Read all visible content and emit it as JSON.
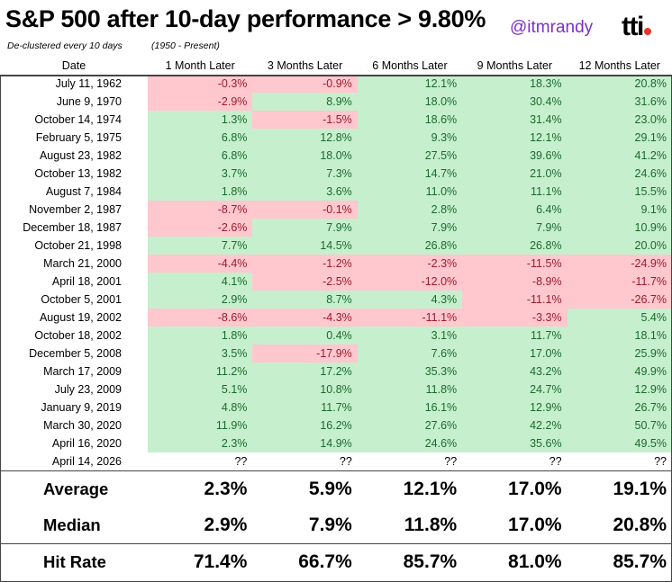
{
  "header": {
    "title": "S&P 500 after 10-day performance > 9.80%",
    "subtitle": "De-clustered every 10 days",
    "range": "(1950 - Present)",
    "handle": "@itmrandy",
    "logo": "tti"
  },
  "columns": [
    "Date",
    "1 Month Later",
    "3 Months Later",
    "6 Months Later",
    "9 Months Later",
    "12 Months Later"
  ],
  "rows": [
    {
      "date": "July 11, 1962",
      "values": [
        "-0.3%",
        "-0.9%",
        "12.1%",
        "18.3%",
        "20.8%"
      ]
    },
    {
      "date": "June 9, 1970",
      "values": [
        "-2.9%",
        "8.9%",
        "18.0%",
        "30.4%",
        "31.6%"
      ]
    },
    {
      "date": "October 14, 1974",
      "values": [
        "1.3%",
        "-1.5%",
        "18.6%",
        "31.4%",
        "23.0%"
      ]
    },
    {
      "date": "February 5, 1975",
      "values": [
        "6.8%",
        "12.8%",
        "9.3%",
        "12.1%",
        "29.1%"
      ]
    },
    {
      "date": "August 23, 1982",
      "values": [
        "6.8%",
        "18.0%",
        "27.5%",
        "39.6%",
        "41.2%"
      ]
    },
    {
      "date": "October 13, 1982",
      "values": [
        "3.7%",
        "7.3%",
        "14.7%",
        "21.0%",
        "24.6%"
      ]
    },
    {
      "date": "August 7, 1984",
      "values": [
        "1.8%",
        "3.6%",
        "11.0%",
        "11.1%",
        "15.5%"
      ]
    },
    {
      "date": "November 2, 1987",
      "values": [
        "-8.7%",
        "-0.1%",
        "2.8%",
        "6.4%",
        "9.1%"
      ]
    },
    {
      "date": "December 18, 1987",
      "values": [
        "-2.6%",
        "7.9%",
        "7.9%",
        "7.9%",
        "10.9%"
      ]
    },
    {
      "date": "October 21, 1998",
      "values": [
        "7.7%",
        "14.5%",
        "26.8%",
        "26.8%",
        "20.0%"
      ]
    },
    {
      "date": "March 21, 2000",
      "values": [
        "-4.4%",
        "-1.2%",
        "-2.3%",
        "-11.5%",
        "-24.9%"
      ]
    },
    {
      "date": "April 18, 2001",
      "values": [
        "4.1%",
        "-2.5%",
        "-12.0%",
        "-8.9%",
        "-11.7%"
      ]
    },
    {
      "date": "October 5, 2001",
      "values": [
        "2.9%",
        "8.7%",
        "4.3%",
        "-11.1%",
        "-26.7%"
      ]
    },
    {
      "date": "August 19, 2002",
      "values": [
        "-8.6%",
        "-4.3%",
        "-11.1%",
        "-3.3%",
        "5.4%"
      ]
    },
    {
      "date": "October 18, 2002",
      "values": [
        "1.8%",
        "0.4%",
        "3.1%",
        "11.7%",
        "18.1%"
      ]
    },
    {
      "date": "December 5, 2008",
      "values": [
        "3.5%",
        "-17.9%",
        "7.6%",
        "17.0%",
        "25.9%"
      ]
    },
    {
      "date": "March 17, 2009",
      "values": [
        "11.2%",
        "17.2%",
        "35.3%",
        "43.2%",
        "49.9%"
      ]
    },
    {
      "date": "July 23, 2009",
      "values": [
        "5.1%",
        "10.8%",
        "11.8%",
        "24.7%",
        "12.9%"
      ]
    },
    {
      "date": "January 9, 2019",
      "values": [
        "4.8%",
        "11.7%",
        "16.1%",
        "12.9%",
        "26.7%"
      ]
    },
    {
      "date": "March 30, 2020",
      "values": [
        "11.9%",
        "16.2%",
        "27.6%",
        "42.2%",
        "50.7%"
      ]
    },
    {
      "date": "April 16, 2020",
      "values": [
        "2.3%",
        "14.9%",
        "24.6%",
        "35.6%",
        "49.5%"
      ]
    },
    {
      "date": "April 14, 2026",
      "values": [
        "??",
        "??",
        "??",
        "??",
        "??"
      ]
    }
  ],
  "summary": [
    {
      "label": "Average",
      "values": [
        "2.3%",
        "5.9%",
        "12.1%",
        "17.0%",
        "19.1%"
      ]
    },
    {
      "label": "Median",
      "values": [
        "2.9%",
        "7.9%",
        "11.8%",
        "17.0%",
        "20.8%"
      ]
    },
    {
      "label": "Hit Rate",
      "values": [
        "71.4%",
        "66.7%",
        "85.7%",
        "81.0%",
        "85.7%"
      ]
    }
  ],
  "colors": {
    "positive_fill": "#c6efce",
    "positive_text": "#1a6b2a",
    "negative_fill": "#ffc7ce",
    "negative_text": "#9c1b2a",
    "handle": "#7a2fc8",
    "logo_dot": "#e8352b"
  }
}
